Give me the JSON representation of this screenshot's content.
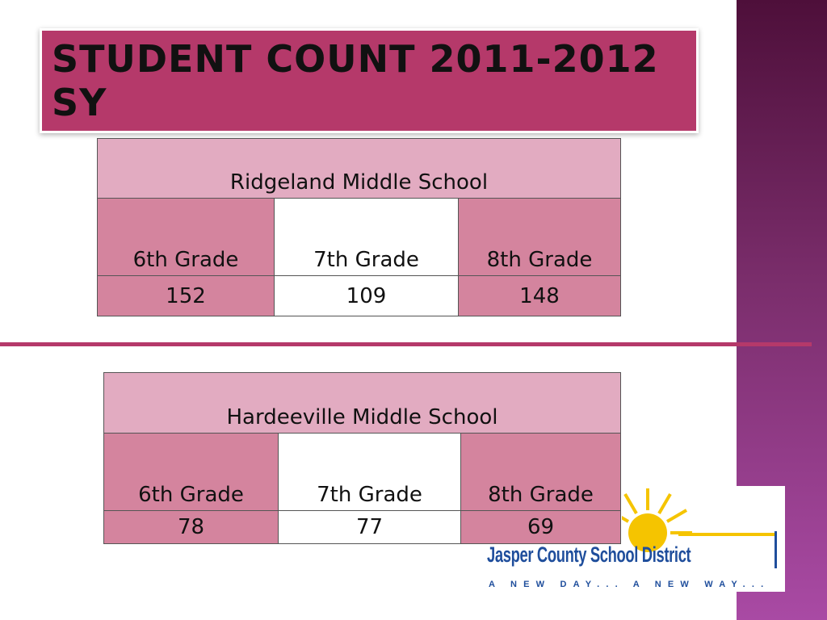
{
  "title": "STUDENT COUNT 2011-2012 SY",
  "tables": [
    {
      "school": "Ridgeland Middle School",
      "headers": [
        "6th Grade",
        "7th Grade",
        "8th Grade"
      ],
      "values": [
        152,
        109,
        148
      ]
    },
    {
      "school": "Hardeeville Middle School",
      "headers": [
        "6th Grade",
        "7th Grade",
        "8th Grade"
      ],
      "values": [
        78,
        77,
        69
      ]
    }
  ],
  "logo": {
    "name": "Jasper County School District",
    "tagline": "A NEW DAY... A NEW WAY..."
  }
}
